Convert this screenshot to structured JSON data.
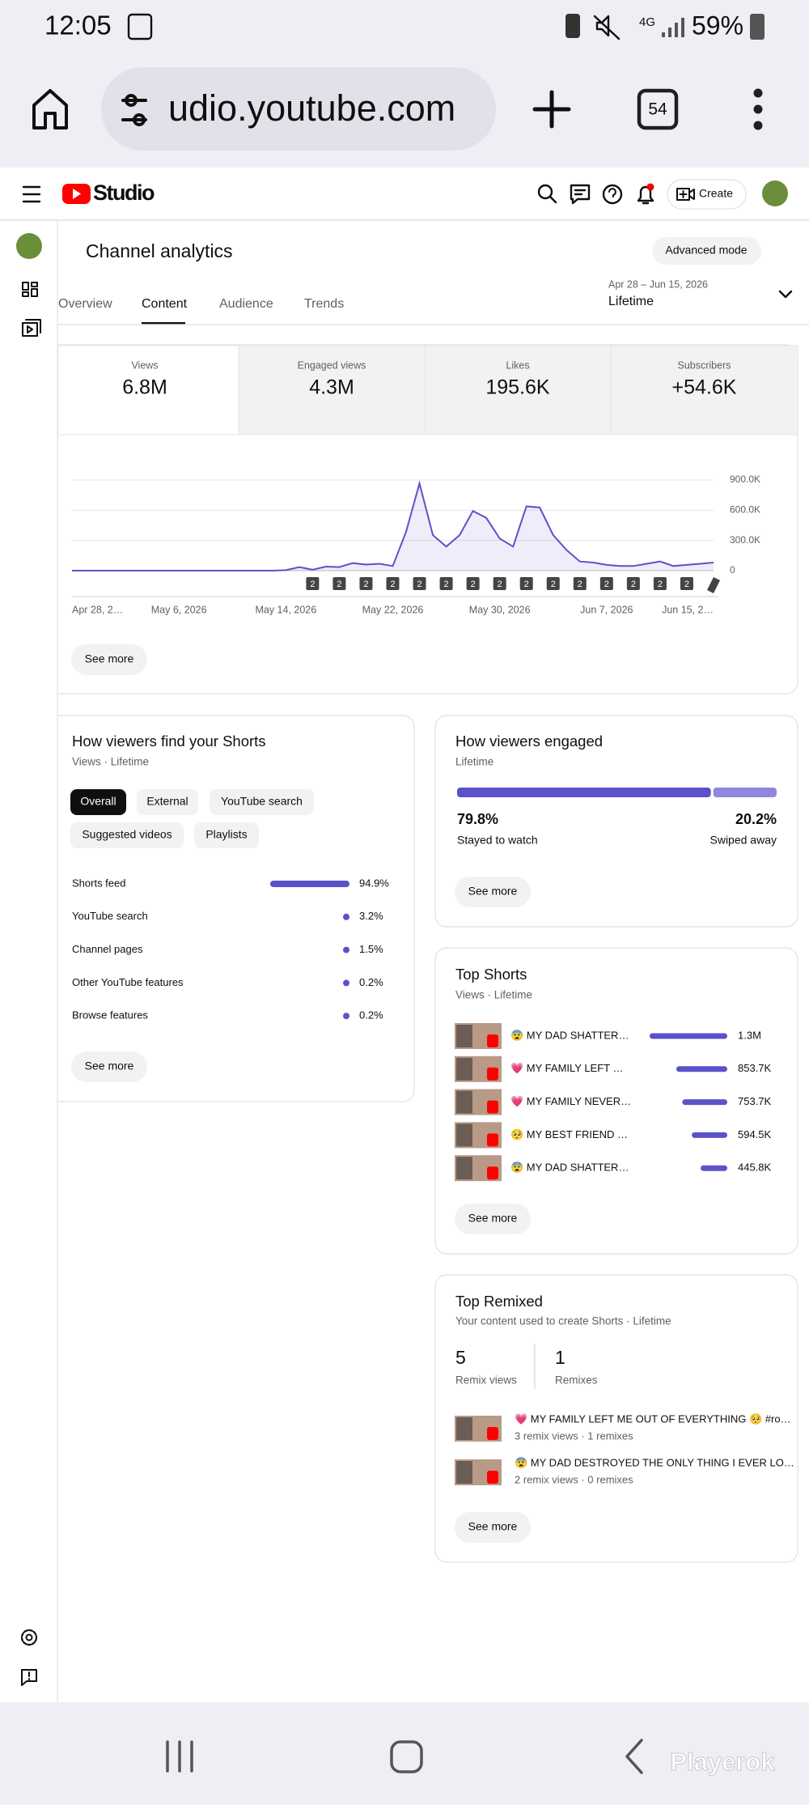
{
  "status_bar": {
    "time": "12:05",
    "network": "4G",
    "battery": "59%"
  },
  "browser": {
    "url": "udio.youtube.com",
    "tab_count": "54"
  },
  "header": {
    "logo": "Studio",
    "create": "Create"
  },
  "page": {
    "title": "Channel analytics",
    "advanced_mode": "Advanced mode",
    "tabs": [
      "Overview",
      "Content",
      "Audience",
      "Trends"
    ],
    "date_range": "Apr 28 – Jun 15, 2026",
    "period": "Lifetime"
  },
  "metrics": [
    {
      "label": "Views",
      "value": "6.8M"
    },
    {
      "label": "Engaged views",
      "value": "4.3M"
    },
    {
      "label": "Likes",
      "value": "195.6K"
    },
    {
      "label": "Subscribers",
      "value": "+54.6K"
    }
  ],
  "views_chart": {
    "type": "line",
    "color": "#5b52c9",
    "categories": [
      "Apr 28, 2…",
      null,
      null,
      null,
      null,
      null,
      null,
      null,
      "May 6, 2026",
      null,
      null,
      null,
      null,
      null,
      null,
      null,
      "May 14, 2026",
      null,
      null,
      null,
      null,
      null,
      null,
      null,
      "May 22, 2026",
      null,
      null,
      null,
      null,
      null,
      null,
      null,
      "May 30, 2026",
      null,
      null,
      null,
      null,
      null,
      null,
      null,
      "Jun 7, 2026",
      null,
      null,
      null,
      null,
      null,
      null,
      null,
      "Jun 15, 2…"
    ],
    "values": [
      0,
      0,
      0,
      0,
      0,
      0,
      0,
      0,
      0,
      0,
      0,
      0,
      0,
      0,
      0,
      0,
      5000,
      35000,
      10000,
      40000,
      35000,
      75000,
      60000,
      68000,
      46000,
      387000,
      866000,
      353000,
      239000,
      353000,
      592000,
      524000,
      319000,
      239000,
      638000,
      627000,
      353000,
      205000,
      91000,
      80000,
      57000,
      46000,
      46000,
      68000,
      91000,
      46000,
      57000,
      68000,
      80000
    ],
    "upload_counts": [
      null,
      null,
      null,
      null,
      null,
      null,
      null,
      null,
      null,
      null,
      null,
      null,
      null,
      null,
      null,
      null,
      null,
      null,
      2,
      null,
      2,
      null,
      2,
      null,
      2,
      null,
      2,
      null,
      2,
      null,
      2,
      null,
      2,
      null,
      2,
      null,
      2,
      null,
      2,
      null,
      2,
      null,
      2,
      null,
      2,
      null,
      2,
      null,
      null
    ],
    "ylim": [
      0,
      900000
    ],
    "yticks": [
      {
        "value": 900000,
        "label": "900.0K"
      },
      {
        "value": 600000,
        "label": "600.0K"
      },
      {
        "value": 300000,
        "label": "300.0K"
      },
      0
    ],
    "grid": true,
    "see_more": "See more"
  },
  "shorts_sources": {
    "title": "How viewers find your Shorts",
    "subtitle": "Views · Lifetime",
    "chips": [
      "Overall",
      "External",
      "YouTube search",
      "Suggested videos",
      "Playlists"
    ],
    "color": "#5b52c9",
    "items": [
      {
        "name": "Shorts feed",
        "value": 94.9,
        "value_label": "94.9%"
      },
      {
        "name": "YouTube search",
        "value": 3.2,
        "value_label": "3.2%"
      },
      {
        "name": "Channel pages",
        "value": 1.5,
        "value_label": "1.5%"
      },
      {
        "name": "Other YouTube features",
        "value": 0.2,
        "value_label": "0.2%"
      },
      {
        "name": "Browse features",
        "value": 0.2,
        "value_label": "0.2%"
      }
    ],
    "see_more": "See more"
  },
  "engagement": {
    "title": "How viewers engaged",
    "subtitle": "Lifetime",
    "series": [
      {
        "name": "Stayed to watch",
        "value": 79.8,
        "value_label": "79.8%",
        "color": "#5b52c9"
      },
      {
        "name": "Swiped away",
        "value": 20.2,
        "value_label": "20.2%",
        "color": "#8f88dd"
      }
    ],
    "see_more": "See more"
  },
  "top_shorts": {
    "title": "Top Shorts",
    "subtitle": "Views · Lifetime",
    "color": "#5b52c9",
    "items": [
      {
        "title": "😨 MY DAD SHATTER…",
        "value": 1300000,
        "value_label": "1.3M"
      },
      {
        "title": "💗 MY FAMILY LEFT …",
        "value": 853700,
        "value_label": "853.7K"
      },
      {
        "title": "💗 MY FAMILY NEVER…",
        "value": 753700,
        "value_label": "753.7K"
      },
      {
        "title": "🥺 MY BEST FRIEND …",
        "value": 594500,
        "value_label": "594.5K"
      },
      {
        "title": "😨 MY DAD SHATTER…",
        "value": 445800,
        "value_label": "445.8K"
      }
    ],
    "see_more": "See more"
  },
  "top_remixed": {
    "title": "Top Remixed",
    "subtitle": "Your content used to create Shorts · Lifetime",
    "stats": [
      {
        "value": "5",
        "label": "Remix views"
      },
      {
        "value": "1",
        "label": "Remixes"
      }
    ],
    "items": [
      {
        "title": "💗 MY FAMILY LEFT ME OUT OF EVERYTHING 🥺 #ro…",
        "meta": "3 remix views · 1 remixes"
      },
      {
        "title": "😨 MY DAD DESTROYED THE ONLY THING I EVER LO…",
        "meta": "2 remix views · 0 remixes"
      }
    ],
    "see_more": "See more"
  },
  "watermark": "Playerok"
}
